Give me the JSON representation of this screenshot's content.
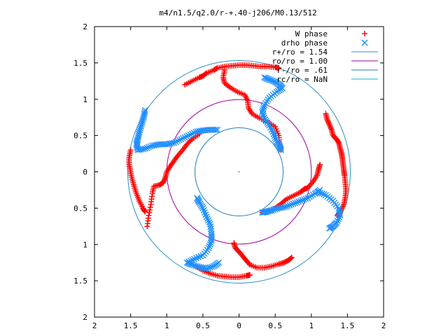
{
  "chart_data": {
    "type": "scatter",
    "title": "m4/n1.5/q2.0/r-+.40-j206/M0.13/512",
    "xlim": [
      -2,
      2
    ],
    "ylim": [
      -2,
      2
    ],
    "x_ticks": [
      {
        "value": -2,
        "label": "2"
      },
      {
        "value": -1.5,
        "label": "1.5"
      },
      {
        "value": -1,
        "label": "1"
      },
      {
        "value": -0.5,
        "label": "0.5"
      },
      {
        "value": 0,
        "label": "0"
      },
      {
        "value": 0.5,
        "label": "0.5"
      },
      {
        "value": 1,
        "label": "1"
      },
      {
        "value": 1.5,
        "label": "1.5"
      },
      {
        "value": 2,
        "label": "2"
      }
    ],
    "y_ticks": [
      {
        "value": 2,
        "label": "2"
      },
      {
        "value": 1.5,
        "label": "1.5"
      },
      {
        "value": 1,
        "label": "1"
      },
      {
        "value": 0.5,
        "label": "0.5"
      },
      {
        "value": 0,
        "label": "0"
      },
      {
        "value": -0.5,
        "label": "0.5"
      },
      {
        "value": -1,
        "label": "1"
      },
      {
        "value": -1.5,
        "label": "1.5"
      },
      {
        "value": -2,
        "label": "2"
      }
    ],
    "grid": false,
    "legend_position": "top-right",
    "series": [
      {
        "name": "W phase",
        "kind": "points",
        "marker": "plus",
        "color": "#ff0000",
        "points": [
          [
            -0.75,
            1.2
          ],
          [
            -0.65,
            1.25
          ],
          [
            -0.55,
            1.3
          ],
          [
            -0.5,
            1.32
          ],
          [
            -0.45,
            1.36
          ],
          [
            -0.35,
            1.4
          ],
          [
            -0.3,
            1.43
          ],
          [
            -0.2,
            1.45
          ],
          [
            -0.1,
            1.46
          ],
          [
            0,
            1.47
          ],
          [
            0.1,
            1.47
          ],
          [
            0.2,
            1.46
          ],
          [
            0.3,
            1.45
          ],
          [
            0.4,
            1.45
          ],
          [
            0.5,
            1.44
          ],
          [
            0.55,
            1.43
          ],
          [
            -0.2,
            1.4
          ],
          [
            -0.22,
            1.3
          ],
          [
            -0.2,
            1.22
          ],
          [
            -0.12,
            1.16
          ],
          [
            -0.02,
            1.1
          ],
          [
            0.08,
            1.06
          ],
          [
            0.12,
            0.98
          ],
          [
            0.13,
            0.88
          ],
          [
            0.18,
            0.8
          ],
          [
            0.28,
            0.74
          ],
          [
            0.4,
            0.68
          ],
          [
            0.5,
            0.62
          ],
          [
            0.55,
            0.5
          ],
          [
            0.56,
            0.38
          ],
          [
            0.58,
            0.3
          ],
          [
            1.2,
            0.8
          ],
          [
            1.22,
            0.72
          ],
          [
            1.25,
            0.65
          ],
          [
            1.28,
            0.58
          ],
          [
            1.3,
            0.5
          ],
          [
            1.35,
            0.45
          ],
          [
            1.38,
            0.4
          ],
          [
            1.4,
            0.32
          ],
          [
            1.42,
            0.25
          ],
          [
            1.43,
            0.18
          ],
          [
            1.44,
            0.1
          ],
          [
            1.45,
            0.02
          ],
          [
            1.46,
            -0.05
          ],
          [
            1.47,
            -0.15
          ],
          [
            1.48,
            -0.25
          ],
          [
            1.47,
            -0.35
          ],
          [
            1.45,
            -0.45
          ],
          [
            1.4,
            -0.55
          ],
          [
            1.36,
            -0.6
          ],
          [
            1.12,
            0.1
          ],
          [
            1.1,
            0.03
          ],
          [
            1.08,
            -0.05
          ],
          [
            1.02,
            -0.14
          ],
          [
            0.95,
            -0.22
          ],
          [
            0.9,
            -0.24
          ],
          [
            0.85,
            -0.28
          ],
          [
            0.75,
            -0.33
          ],
          [
            0.65,
            -0.38
          ],
          [
            0.58,
            -0.44
          ],
          [
            0.5,
            -0.5
          ],
          [
            0.4,
            -0.54
          ],
          [
            0.32,
            -0.56
          ],
          [
            -0.07,
            -0.98
          ],
          [
            -0.05,
            -1.05
          ],
          [
            0.0,
            -1.1
          ],
          [
            0.05,
            -1.16
          ],
          [
            0.1,
            -1.22
          ],
          [
            0.15,
            -1.28
          ],
          [
            0.25,
            -1.32
          ],
          [
            0.35,
            -1.32
          ],
          [
            0.45,
            -1.3
          ],
          [
            0.55,
            -1.27
          ],
          [
            0.62,
            -1.25
          ],
          [
            0.68,
            -1.22
          ],
          [
            0.73,
            -1.18
          ],
          [
            -0.6,
            -1.3
          ],
          [
            -0.5,
            -1.36
          ],
          [
            -0.4,
            -1.4
          ],
          [
            -0.3,
            -1.43
          ],
          [
            -0.2,
            -1.44
          ],
          [
            -0.1,
            -1.45
          ],
          [
            0.0,
            -1.45
          ],
          [
            0.1,
            -1.43
          ],
          [
            0.15,
            -1.42
          ],
          [
            -0.55,
            0.52
          ],
          [
            -0.65,
            0.45
          ],
          [
            -0.72,
            0.38
          ],
          [
            -0.78,
            0.3
          ],
          [
            -0.85,
            0.22
          ],
          [
            -0.9,
            0.15
          ],
          [
            -0.95,
            0.08
          ],
          [
            -1.0,
            0.0
          ],
          [
            -1.02,
            -0.08
          ],
          [
            -1.05,
            -0.15
          ],
          [
            -1.1,
            -0.18
          ],
          [
            -1.18,
            -0.2
          ],
          [
            -1.2,
            -0.3
          ],
          [
            -1.22,
            -0.45
          ],
          [
            -1.25,
            -0.6
          ],
          [
            -1.27,
            -0.75
          ],
          [
            -1.5,
            0.3
          ],
          [
            -1.52,
            0.2
          ],
          [
            -1.52,
            0.1
          ],
          [
            -1.5,
            0.0
          ],
          [
            -1.48,
            -0.1
          ],
          [
            -1.45,
            -0.2
          ],
          [
            -1.42,
            -0.3
          ],
          [
            -1.38,
            -0.4
          ],
          [
            -1.33,
            -0.5
          ],
          [
            -1.3,
            -0.55
          ]
        ]
      },
      {
        "name": "drho phase",
        "kind": "points",
        "marker": "cross",
        "color": "#1f8fff",
        "points": [
          [
            0.35,
            1.3
          ],
          [
            0.42,
            1.27
          ],
          [
            0.5,
            1.24
          ],
          [
            0.56,
            1.2
          ],
          [
            0.6,
            1.15
          ],
          [
            0.52,
            1.1
          ],
          [
            0.42,
            1.02
          ],
          [
            0.35,
            0.92
          ],
          [
            0.32,
            0.82
          ],
          [
            0.36,
            0.72
          ],
          [
            0.42,
            0.64
          ],
          [
            0.48,
            0.52
          ],
          [
            0.52,
            0.42
          ],
          [
            0.56,
            0.36
          ],
          [
            0.58,
            0.3
          ],
          [
            1.12,
            -0.25
          ],
          [
            1.05,
            -0.3
          ],
          [
            0.95,
            -0.36
          ],
          [
            0.85,
            -0.4
          ],
          [
            0.75,
            -0.44
          ],
          [
            0.65,
            -0.48
          ],
          [
            0.55,
            -0.5
          ],
          [
            0.45,
            -0.53
          ],
          [
            0.38,
            -0.55
          ],
          [
            0.32,
            -0.56
          ],
          [
            1.1,
            -0.28
          ],
          [
            1.2,
            -0.32
          ],
          [
            1.3,
            -0.4
          ],
          [
            1.38,
            -0.5
          ],
          [
            1.4,
            -0.6
          ],
          [
            1.35,
            -0.7
          ],
          [
            1.3,
            -0.75
          ],
          [
            1.25,
            -0.78
          ],
          [
            -0.28,
            -1.25
          ],
          [
            -0.35,
            -1.3
          ],
          [
            -0.45,
            -1.33
          ],
          [
            -0.55,
            -1.31
          ],
          [
            -0.65,
            -1.28
          ],
          [
            -0.72,
            -1.25
          ],
          [
            -0.62,
            -1.2
          ],
          [
            -0.5,
            -1.15
          ],
          [
            -0.42,
            -1.05
          ],
          [
            -0.38,
            -0.95
          ],
          [
            -0.38,
            -0.85
          ],
          [
            -0.4,
            -0.72
          ],
          [
            -0.45,
            -0.62
          ],
          [
            -0.5,
            -0.5
          ],
          [
            -0.55,
            -0.42
          ],
          [
            -0.58,
            -0.36
          ],
          [
            -1.3,
            0.85
          ],
          [
            -1.32,
            0.75
          ],
          [
            -1.35,
            0.65
          ],
          [
            -1.38,
            0.55
          ],
          [
            -1.4,
            0.45
          ],
          [
            -1.42,
            0.38
          ],
          [
            -1.4,
            0.3
          ],
          [
            -1.3,
            0.32
          ],
          [
            -1.2,
            0.36
          ],
          [
            -1.1,
            0.38
          ],
          [
            -1.0,
            0.38
          ],
          [
            -0.9,
            0.4
          ],
          [
            -0.8,
            0.45
          ],
          [
            -0.7,
            0.5
          ],
          [
            -0.6,
            0.55
          ],
          [
            -0.5,
            0.57
          ],
          [
            -0.4,
            0.58
          ],
          [
            -0.3,
            0.58
          ]
        ]
      },
      {
        "name": "r+/ro = 1.54",
        "kind": "circle",
        "radius": 1.54,
        "color": "#2a8fc8"
      },
      {
        "name": "ro/ro = 1.00",
        "kind": "circle",
        "radius": 1.0,
        "color": "#a000a0"
      },
      {
        "name": "r-/ro = .61",
        "kind": "circle",
        "radius": 0.61,
        "color": "#1f7fc0"
      },
      {
        "name": "rc/ro = NaN",
        "kind": "circle",
        "radius": null,
        "color": "#00bcd4"
      }
    ]
  }
}
